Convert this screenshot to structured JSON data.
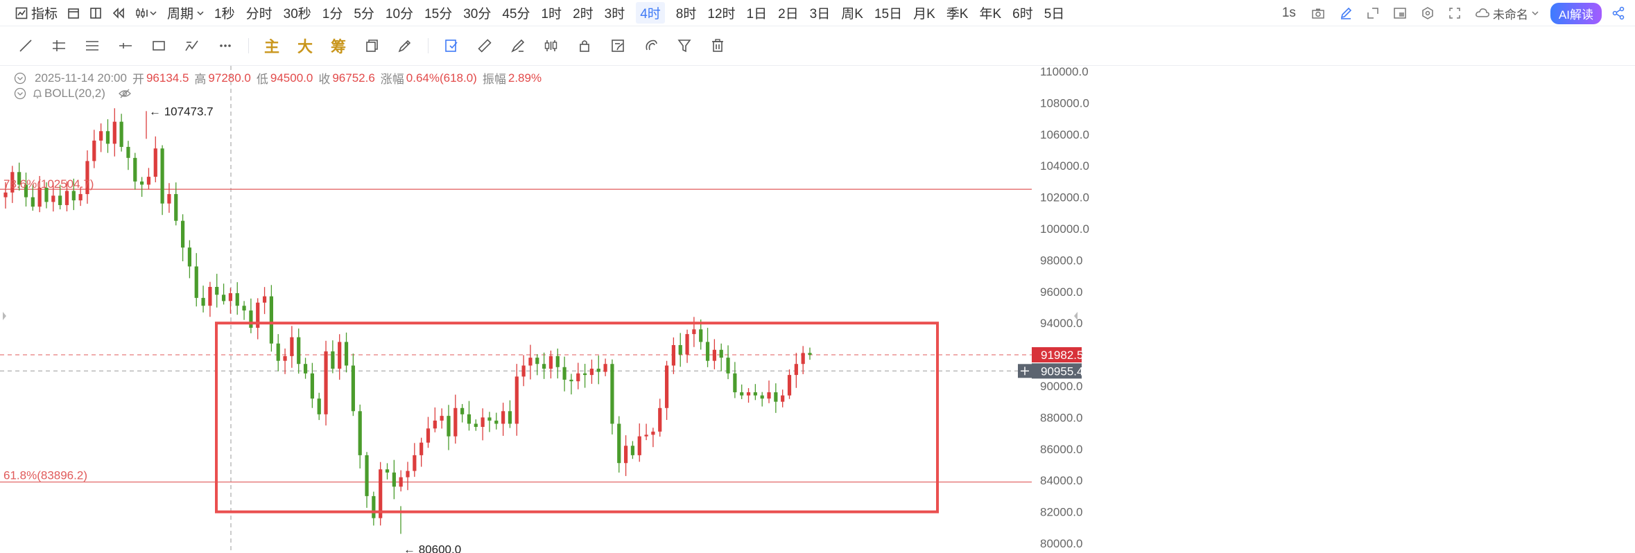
{
  "toolbar": {
    "indicator_label": "指标",
    "period_label": "周期",
    "timeframes": [
      "1秒",
      "分时",
      "30秒",
      "1分",
      "5分",
      "10分",
      "15分",
      "30分",
      "45分",
      "1时",
      "2时",
      "3时",
      "4时",
      "8时",
      "12时",
      "1日",
      "2日",
      "3日",
      "周K",
      "15日",
      "月K",
      "季K",
      "年K",
      "6时",
      "5日"
    ],
    "active_timeframe": "4时",
    "interval_label": "1s",
    "layout_name": "未命名",
    "ai_button": "AI解读"
  },
  "tools": {
    "main_label": "主",
    "large_label": "大",
    "chips_label": "筹"
  },
  "ohlc": {
    "time": "2025-11-14 20:00",
    "open_label": "开",
    "open": "96134.5",
    "high_label": "高",
    "high": "97280.0",
    "low_label": "低",
    "low": "94500.0",
    "close_label": "收",
    "close": "96752.6",
    "change_label": "涨幅",
    "change": "0.64%(618.0)",
    "amplitude_label": "振幅",
    "amplitude": "2.89%"
  },
  "indicator": {
    "name": "BOLL(20,2)"
  },
  "chart_data": {
    "type": "candlestick",
    "y_ticks": [
      "110000.0",
      "108000.0",
      "106000.0",
      "104000.0",
      "102000.0",
      "100000.0",
      "98000.0",
      "96000.0",
      "94000.0",
      "92000.0",
      "90000.0",
      "88000.0",
      "86000.0",
      "84000.0",
      "82000.0",
      "80000.0"
    ],
    "ylim": [
      79500,
      110500
    ],
    "price_label_current": "91982.5",
    "price_label_crosshair": "90955.4",
    "fib_upper_label": "78.6%(102504.7)",
    "fib_upper_value": 102504.7,
    "fib_lower_label": "61.8%(83896.2)",
    "fib_lower_value": 83896.2,
    "high_marker": "← 107473.7",
    "high_value": 107473.7,
    "low_marker": "← 80600.0",
    "low_value": 80600.0,
    "range_box": {
      "top_price": 94000,
      "bottom_price": 82000
    },
    "candle_path": [
      102300,
      103600,
      102800,
      102000,
      101400,
      102600,
      101700,
      102100,
      101500,
      102400,
      101800,
      102200,
      104300,
      105600,
      106200,
      105400,
      106800,
      105200,
      104500,
      103000,
      102800,
      103300,
      105100,
      101600,
      102200,
      100500,
      98800,
      97600,
      95600,
      95100,
      96300,
      95800,
      95400,
      95900,
      95100,
      94800,
      93700,
      95300,
      95700,
      92700,
      91600,
      91900,
      93100,
      91400,
      90800,
      89200,
      88200,
      92200,
      91100,
      92800,
      91300,
      88400,
      85600,
      83000,
      81600,
      84700,
      84500,
      83600,
      84200,
      84600,
      85600,
      86400,
      87300,
      87800,
      88100,
      86800,
      88600,
      88200,
      87600,
      87400,
      88000,
      87800,
      87600,
      88400,
      87600,
      90600,
      91300,
      91800,
      91400,
      91100,
      91900,
      91200,
      90400,
      90300,
      90800,
      90700,
      91100,
      90900,
      91400,
      87600,
      85100,
      86200,
      85600,
      86800,
      86900,
      87100,
      88600,
      91300,
      92600,
      92000,
      93300,
      93600,
      92800,
      91600,
      92300,
      91800,
      90800,
      89600,
      89400,
      89600,
      89400,
      89200,
      89600,
      89000,
      89400,
      90700,
      91400,
      92100,
      91982.5
    ]
  }
}
